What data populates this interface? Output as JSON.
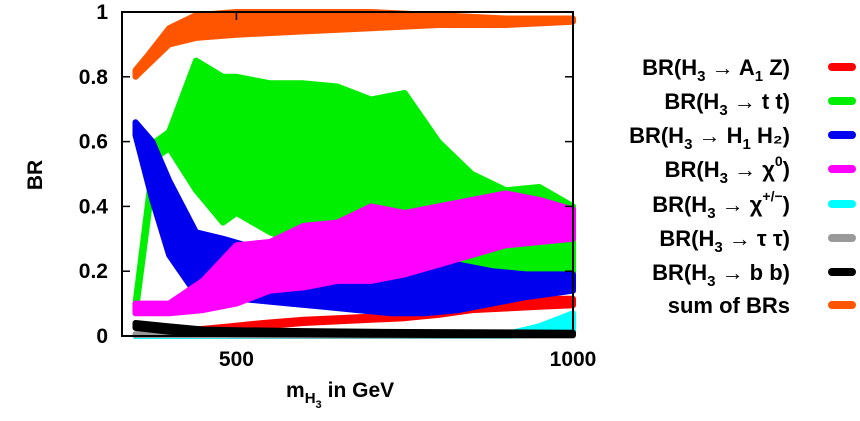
{
  "chart_data": {
    "type": "area",
    "ylabel": "BR",
    "xlabel": {
      "main": "m",
      "sub1": "H",
      "sub2": "3",
      "rest": "in GeV"
    },
    "xlim": [
      330,
      1000
    ],
    "ylim": [
      0,
      1
    ],
    "xticks": [
      500,
      1000
    ],
    "yticks": [
      0,
      0.2,
      0.4,
      0.6,
      0.8,
      1
    ],
    "ytick_labels": [
      "0",
      "0.2",
      "0.4",
      "0.6",
      "0.8",
      "1"
    ],
    "grid": false,
    "legend_position": "right",
    "series": [
      {
        "key": "a1z",
        "color": "#ff0000",
        "legend": {
          "pre": "BR(H",
          "sub": "3",
          "mid": " → A",
          "sub2": "1",
          "post": " Z)"
        },
        "x": [
          350,
          390,
          440,
          490,
          540,
          600,
          650,
          700,
          750,
          800,
          850,
          900,
          950,
          1000
        ],
        "lower": [
          0.0,
          0.003,
          0.01,
          0.02,
          0.03,
          0.04,
          0.045,
          0.05,
          0.055,
          0.065,
          0.08,
          0.085,
          0.09,
          0.095
        ],
        "upper": [
          0.005,
          0.01,
          0.02,
          0.03,
          0.04,
          0.05,
          0.055,
          0.06,
          0.07,
          0.08,
          0.105,
          0.11,
          0.115,
          0.115
        ]
      },
      {
        "key": "tt",
        "color": "#00ee00",
        "legend": {
          "pre": "BR(H",
          "sub": "3",
          "mid": " → t t)",
          "sub2": "",
          "post": ""
        },
        "x": [
          350,
          380,
          400,
          440,
          480,
          500,
          550,
          600,
          650,
          700,
          750,
          800,
          850,
          900,
          950,
          1000
        ],
        "lower": [
          0.07,
          0.55,
          0.58,
          0.45,
          0.35,
          0.38,
          0.32,
          0.28,
          0.33,
          0.25,
          0.23,
          0.2,
          0.2,
          0.18,
          0.16,
          0.18
        ],
        "upper": [
          0.1,
          0.6,
          0.63,
          0.85,
          0.8,
          0.8,
          0.78,
          0.78,
          0.77,
          0.73,
          0.75,
          0.6,
          0.5,
          0.45,
          0.46,
          0.4
        ]
      },
      {
        "key": "h1h2",
        "color": "#0000ee",
        "legend": {
          "pre": "BR(H",
          "sub": "3",
          "mid": " → H",
          "sub2": "1",
          "post": " H₂)"
        },
        "x": [
          350,
          375,
          400,
          440,
          480,
          530,
          580,
          630,
          680,
          730,
          780,
          830,
          880,
          930,
          1000
        ],
        "lower": [
          0.62,
          0.42,
          0.25,
          0.13,
          0.12,
          0.11,
          0.1,
          0.09,
          0.08,
          0.07,
          0.07,
          0.08,
          0.1,
          0.12,
          0.14
        ],
        "upper": [
          0.66,
          0.6,
          0.48,
          0.32,
          0.3,
          0.27,
          0.24,
          0.24,
          0.23,
          0.22,
          0.24,
          0.22,
          0.2,
          0.19,
          0.19
        ]
      },
      {
        "key": "chi0",
        "color": "#ff00ff",
        "legend": {
          "pre": "BR(H",
          "sub": "3",
          "mid": " → χ",
          "sub2": "",
          "post": "",
          "sup": "0",
          "close": ")"
        },
        "x": [
          350,
          400,
          450,
          500,
          550,
          600,
          650,
          700,
          750,
          800,
          850,
          900,
          950,
          1000
        ],
        "lower": [
          0.07,
          0.07,
          0.08,
          0.1,
          0.14,
          0.15,
          0.17,
          0.17,
          0.19,
          0.22,
          0.25,
          0.28,
          0.29,
          0.3
        ],
        "upper": [
          0.1,
          0.1,
          0.17,
          0.28,
          0.29,
          0.34,
          0.35,
          0.4,
          0.38,
          0.4,
          0.42,
          0.44,
          0.42,
          0.39
        ]
      },
      {
        "key": "chipm",
        "color": "#00ffff",
        "legend": {
          "pre": "BR(H",
          "sub": "3",
          "mid": " → χ",
          "sub2": "",
          "post": "",
          "sup": "+/−",
          "close": ")"
        },
        "x": [
          350,
          500,
          700,
          900,
          950,
          1000
        ],
        "lower": [
          0.0,
          0.0,
          0.0,
          0.0,
          0.002,
          0.005
        ],
        "upper": [
          0.0,
          0.0,
          0.0,
          0.005,
          0.03,
          0.07
        ]
      },
      {
        "key": "tautau",
        "color": "#999999",
        "legend": {
          "pre": "BR(H",
          "sub": "3",
          "mid": " → τ τ)",
          "sub2": "",
          "post": ""
        },
        "x": [
          350,
          500,
          700,
          900,
          1000
        ],
        "lower": [
          0.003,
          0.002,
          0.001,
          0.001,
          0.001
        ],
        "upper": [
          0.006,
          0.004,
          0.003,
          0.003,
          0.003
        ]
      },
      {
        "key": "bb",
        "color": "#000000",
        "legend": {
          "pre": "BR(H",
          "sub": "3",
          "mid": " → b b)",
          "sub2": "",
          "post": ""
        },
        "x": [
          350,
          400,
          450,
          500,
          600,
          700,
          800,
          900,
          1000
        ],
        "lower": [
          0.025,
          0.013,
          0.007,
          0.006,
          0.005,
          0.004,
          0.003,
          0.003,
          0.003
        ],
        "upper": [
          0.04,
          0.03,
          0.02,
          0.018,
          0.015,
          0.013,
          0.012,
          0.011,
          0.01
        ]
      },
      {
        "key": "sum",
        "color": "#ff5500",
        "legend": {
          "pre": "sum of BRs",
          "sub": "",
          "mid": "",
          "sub2": "",
          "post": ""
        },
        "x": [
          350,
          370,
          400,
          440,
          500,
          600,
          700,
          800,
          900,
          1000
        ],
        "lower": [
          0.8,
          0.84,
          0.9,
          0.92,
          0.93,
          0.94,
          0.95,
          0.96,
          0.96,
          0.97
        ],
        "upper": [
          0.82,
          0.87,
          0.95,
          0.99,
          1.0,
          1.0,
          1.0,
          0.99,
          0.98,
          0.98
        ]
      }
    ]
  }
}
